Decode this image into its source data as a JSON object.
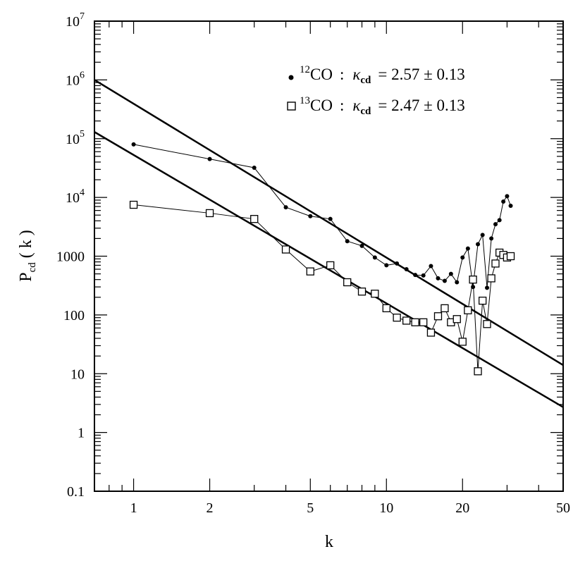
{
  "chart_data": {
    "type": "scatter",
    "xlabel": "k",
    "ylabel": "P",
    "ylabel_sub": "cd",
    "ylabel_arg": "( k )",
    "xscale": "log",
    "yscale": "log",
    "xlim": [
      0.7,
      50
    ],
    "ylim": [
      0.1,
      10000000
    ],
    "xticks": [
      {
        "value": 1,
        "label": "1"
      },
      {
        "value": 2,
        "label": "2"
      },
      {
        "value": 5,
        "label": "5"
      },
      {
        "value": 10,
        "label": "10"
      },
      {
        "value": 20,
        "label": "20"
      },
      {
        "value": 50,
        "label": "50"
      }
    ],
    "yticks": [
      {
        "value": 0.1,
        "label": "0.1"
      },
      {
        "value": 1,
        "label": "1"
      },
      {
        "value": 10,
        "label": "10"
      },
      {
        "value": 100,
        "label": "100"
      },
      {
        "value": 1000,
        "label": "1000"
      }
    ],
    "yticks_pow": [
      {
        "value": 10000,
        "base": "10",
        "exp": "4"
      },
      {
        "value": 100000,
        "base": "10",
        "exp": "5"
      },
      {
        "value": 1000000,
        "base": "10",
        "exp": "6"
      },
      {
        "value": 10000000,
        "base": "10",
        "exp": "7"
      }
    ],
    "legend_position": "top-right",
    "series": [
      {
        "name": "12CO",
        "legend_sup": "12",
        "legend_name": "CO",
        "legend_kappa": "κ",
        "legend_sub": "cd",
        "legend_value": "= 2.57 ± 0.13",
        "marker": "filled-circle",
        "color": "#000000",
        "x": [
          1,
          2,
          3,
          4,
          5,
          6,
          7,
          8,
          9,
          10,
          11,
          12,
          13,
          14,
          15,
          16,
          17,
          18,
          19,
          20,
          21,
          22,
          23,
          24,
          25,
          26,
          27,
          28,
          29,
          30,
          31,
          32
        ],
        "y": [
          80000,
          45000,
          32000,
          6800,
          4800,
          4300,
          1800,
          1500,
          950,
          700,
          750,
          600,
          480,
          470,
          680,
          420,
          380,
          500,
          360,
          950,
          1350,
          300,
          1600,
          2300,
          290,
          2000,
          3500,
          4100,
          8500,
          10500,
          7200,
          null
        ]
      },
      {
        "name": "13CO",
        "legend_sup": "13",
        "legend_name": "CO",
        "legend_kappa": "κ",
        "legend_sub": "cd",
        "legend_value": "= 2.47 ± 0.13",
        "marker": "open-square",
        "color": "#000000",
        "x": [
          1,
          2,
          3,
          4,
          5,
          6,
          7,
          8,
          9,
          10,
          11,
          12,
          13,
          14,
          15,
          16,
          17,
          18,
          19,
          20,
          21,
          22,
          23,
          24,
          25,
          26,
          27,
          28,
          29,
          30,
          31
        ],
        "y": [
          7500,
          5400,
          4300,
          1300,
          550,
          700,
          360,
          250,
          230,
          130,
          90,
          80,
          75,
          75,
          50,
          95,
          130,
          75,
          85,
          35,
          120,
          400,
          11,
          175,
          70,
          420,
          750,
          1150,
          1050,
          950,
          1000
        ]
      }
    ],
    "fits": [
      {
        "name": "12CO fit",
        "x": [
          0.7,
          50
        ],
        "y": [
          1000000,
          14
        ]
      },
      {
        "name": "13CO fit",
        "x": [
          0.7,
          50
        ],
        "y": [
          130000,
          2.7
        ]
      }
    ]
  }
}
